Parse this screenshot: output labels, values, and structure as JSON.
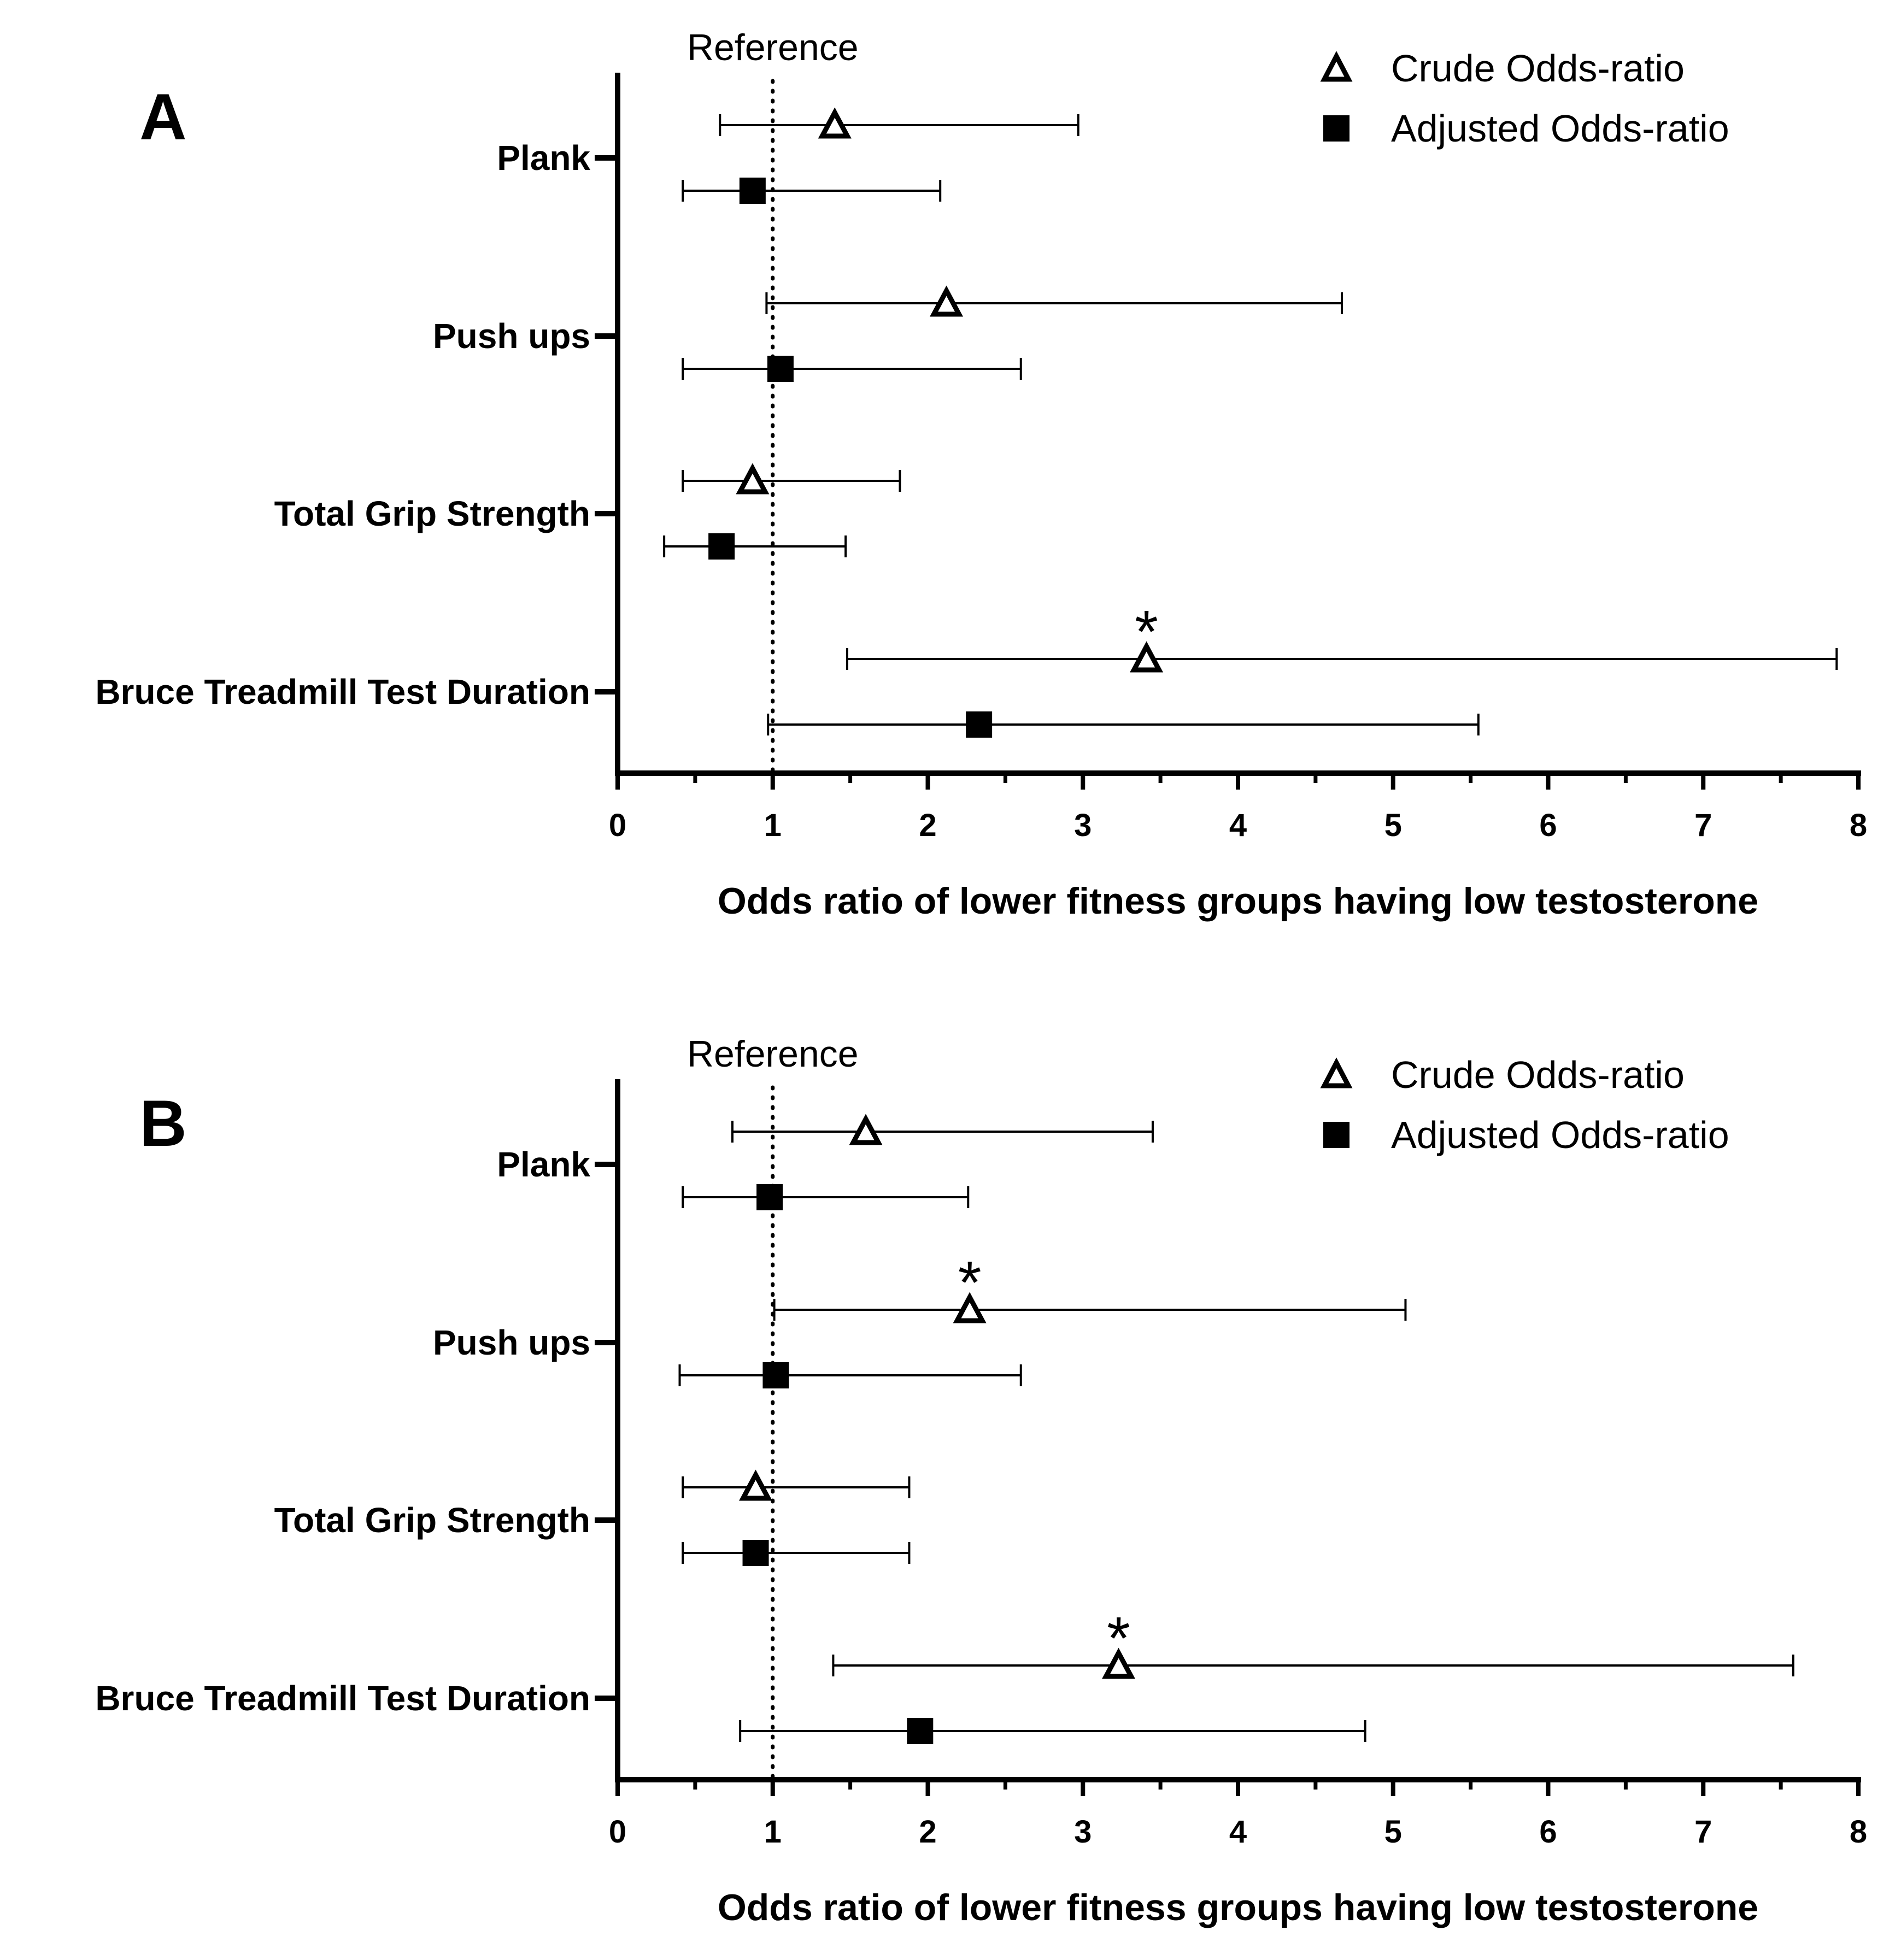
{
  "chart_data": [
    {
      "type": "forest",
      "panel": "A",
      "title": "",
      "xlabel": "Odds ratio of lower fitness groups having low testosterone",
      "xlim": [
        0,
        8
      ],
      "xticks": [
        0,
        1,
        2,
        3,
        4,
        5,
        6,
        7,
        8
      ],
      "xtick_labels": [
        "0",
        "1",
        "2",
        "3",
        "4",
        "5",
        "6",
        "7",
        "8"
      ],
      "reference": {
        "value": 1,
        "label": "Reference"
      },
      "legend": {
        "position": "top-right",
        "entries": [
          {
            "name": "Crude Odds-ratio",
            "marker": "open-triangle"
          },
          {
            "name": "Adjusted Odds-ratio",
            "marker": "filled-square"
          }
        ]
      },
      "categories": [
        "Plank",
        "Push ups",
        "Total Grip Strength",
        "Bruce Treadmill Test Duration"
      ],
      "series": [
        {
          "name": "Crude Odds-ratio",
          "marker": "open-triangle",
          "points": [
            {
              "category": "Plank",
              "or": 1.4,
              "ci_low": 0.66,
              "ci_high": 2.97,
              "significant": false
            },
            {
              "category": "Push ups",
              "or": 2.12,
              "ci_low": 0.96,
              "ci_high": 4.67,
              "significant": false
            },
            {
              "category": "Total Grip Strength",
              "or": 0.87,
              "ci_low": 0.42,
              "ci_high": 1.82,
              "significant": false
            },
            {
              "category": "Bruce Treadmill Test Duration",
              "or": 3.41,
              "ci_low": 1.48,
              "ci_high": 7.86,
              "significant": true
            }
          ]
        },
        {
          "name": "Adjusted Odds-ratio",
          "marker": "filled-square",
          "points": [
            {
              "category": "Plank",
              "or": 0.87,
              "ci_low": 0.42,
              "ci_high": 2.08,
              "significant": false
            },
            {
              "category": "Push ups",
              "or": 1.05,
              "ci_low": 0.42,
              "ci_high": 2.6,
              "significant": false
            },
            {
              "category": "Total Grip Strength",
              "or": 0.67,
              "ci_low": 0.3,
              "ci_high": 1.47,
              "significant": false
            },
            {
              "category": "Bruce Treadmill Test Duration",
              "or": 2.33,
              "ci_low": 0.97,
              "ci_high": 5.55,
              "significant": false
            }
          ]
        }
      ],
      "significance_marker": "*"
    },
    {
      "type": "forest",
      "panel": "B",
      "title": "",
      "xlabel": "Odds ratio of lower fitness groups having low testosterone",
      "xlim": [
        0,
        8
      ],
      "xticks": [
        0,
        1,
        2,
        3,
        4,
        5,
        6,
        7,
        8
      ],
      "xtick_labels": [
        "0",
        "1",
        "2",
        "3",
        "4",
        "5",
        "6",
        "7",
        "8"
      ],
      "reference": {
        "value": 1,
        "label": "Reference"
      },
      "legend": {
        "position": "top-right",
        "entries": [
          {
            "name": "Crude Odds-ratio",
            "marker": "open-triangle"
          },
          {
            "name": "Adjusted Odds-ratio",
            "marker": "filled-square"
          }
        ]
      },
      "categories": [
        "Plank",
        "Push ups",
        "Total Grip Strength",
        "Bruce Treadmill Test Duration"
      ],
      "series": [
        {
          "name": "Crude Odds-ratio",
          "marker": "open-triangle",
          "points": [
            {
              "category": "Plank",
              "or": 1.6,
              "ci_low": 0.74,
              "ci_high": 3.45,
              "significant": false
            },
            {
              "category": "Push ups",
              "or": 2.27,
              "ci_low": 1.01,
              "ci_high": 5.08,
              "significant": true
            },
            {
              "category": "Total Grip Strength",
              "or": 0.89,
              "ci_low": 0.42,
              "ci_high": 1.88,
              "significant": false
            },
            {
              "category": "Bruce Treadmill Test Duration",
              "or": 3.23,
              "ci_low": 1.39,
              "ci_high": 7.58,
              "significant": true
            }
          ]
        },
        {
          "name": "Adjusted Odds-ratio",
          "marker": "filled-square",
          "points": [
            {
              "category": "Plank",
              "or": 0.98,
              "ci_low": 0.42,
              "ci_high": 2.26,
              "significant": false
            },
            {
              "category": "Push ups",
              "or": 1.02,
              "ci_low": 0.4,
              "ci_high": 2.6,
              "significant": false
            },
            {
              "category": "Total Grip Strength",
              "or": 0.89,
              "ci_low": 0.42,
              "ci_high": 1.88,
              "significant": false
            },
            {
              "category": "Bruce Treadmill Test Duration",
              "or": 1.95,
              "ci_low": 0.79,
              "ci_high": 4.82,
              "significant": false
            }
          ]
        }
      ],
      "significance_marker": "*"
    }
  ]
}
